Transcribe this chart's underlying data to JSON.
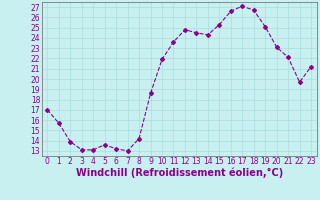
{
  "x": [
    0,
    1,
    2,
    3,
    4,
    5,
    6,
    7,
    8,
    9,
    10,
    11,
    12,
    13,
    14,
    15,
    16,
    17,
    18,
    19,
    20,
    21,
    22,
    23
  ],
  "y": [
    17.0,
    15.7,
    13.9,
    13.1,
    13.1,
    13.6,
    13.2,
    13.0,
    14.2,
    18.6,
    21.9,
    23.6,
    24.8,
    24.5,
    24.3,
    25.3,
    26.6,
    27.1,
    26.7,
    25.1,
    23.1,
    22.1,
    19.7,
    21.2
  ],
  "line_color": "#8B008B",
  "marker": "D",
  "marker_size": 2.0,
  "bg_color": "#c8f0f0",
  "grid_color": "#aadddd",
  "xlabel": "Windchill (Refroidissement éolien,°C)",
  "xlabel_fontsize": 7,
  "ylabel_ticks": [
    13,
    14,
    15,
    16,
    17,
    18,
    19,
    20,
    21,
    22,
    23,
    24,
    25,
    26,
    27
  ],
  "xticks": [
    0,
    1,
    2,
    3,
    4,
    5,
    6,
    7,
    8,
    9,
    10,
    11,
    12,
    13,
    14,
    15,
    16,
    17,
    18,
    19,
    20,
    21,
    22,
    23
  ],
  "ylim": [
    12.5,
    27.5
  ],
  "xlim": [
    -0.5,
    23.5
  ],
  "tick_fontsize": 5.5
}
